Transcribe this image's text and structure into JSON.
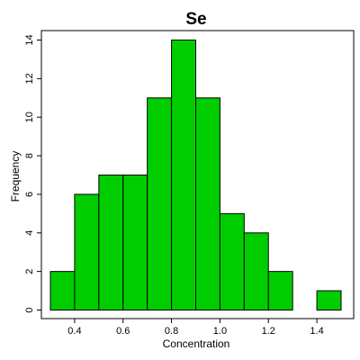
{
  "chart_data": {
    "type": "bar",
    "title": "Se",
    "xlabel": "Concentration",
    "ylabel": "Frequency",
    "bins": [
      {
        "x0": 0.3,
        "x1": 0.4,
        "count": 2
      },
      {
        "x0": 0.4,
        "x1": 0.5,
        "count": 6
      },
      {
        "x0": 0.5,
        "x1": 0.6,
        "count": 7
      },
      {
        "x0": 0.6,
        "x1": 0.7,
        "count": 7
      },
      {
        "x0": 0.7,
        "x1": 0.8,
        "count": 11
      },
      {
        "x0": 0.8,
        "x1": 0.9,
        "count": 14
      },
      {
        "x0": 0.9,
        "x1": 1.0,
        "count": 11
      },
      {
        "x0": 1.0,
        "x1": 1.1,
        "count": 5
      },
      {
        "x0": 1.1,
        "x1": 1.2,
        "count": 4
      },
      {
        "x0": 1.2,
        "x1": 1.3,
        "count": 2
      },
      {
        "x0": 1.3,
        "x1": 1.4,
        "count": 0
      },
      {
        "x0": 1.4,
        "x1": 1.5,
        "count": 1
      }
    ],
    "xlim": [
      0.3,
      1.5
    ],
    "ylim": [
      0,
      14
    ],
    "xticks": [
      "0.4",
      "0.6",
      "0.8",
      "1.0",
      "1.2",
      "1.4"
    ],
    "yticks": [
      "0",
      "2",
      "4",
      "6",
      "8",
      "10",
      "12",
      "14"
    ],
    "grid": false,
    "bar_color": "#00cd00"
  }
}
